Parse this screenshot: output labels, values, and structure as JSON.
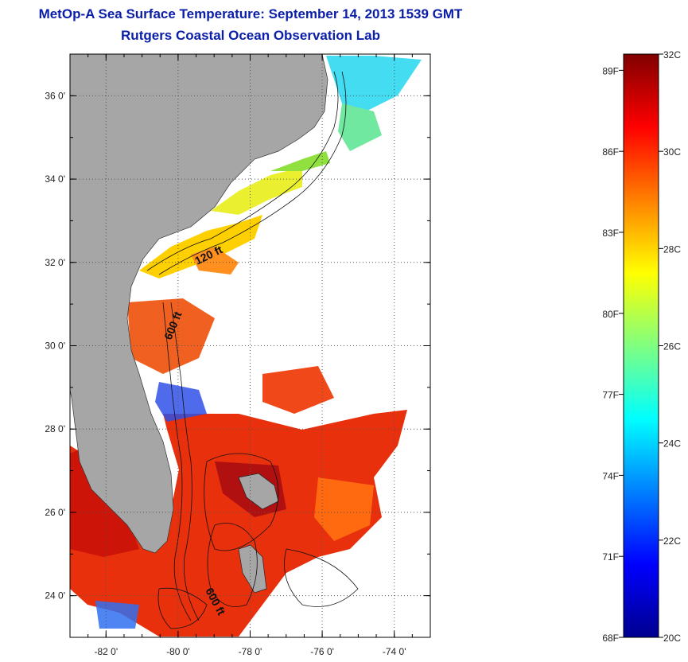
{
  "title": "MetOp-A Sea Surface Temperature:  September 14, 2013 1539 GMT",
  "subtitle": "Rutgers Coastal Ocean Observation Lab",
  "map": {
    "lon_range": [
      -83,
      -73
    ],
    "lat_range": [
      23,
      37
    ],
    "lat_labels": [
      "36 0'",
      "34 0'",
      "32 0'",
      "30 0'",
      "28 0'",
      "26 0'",
      "24 0'"
    ],
    "lon_labels": [
      "-82 0'",
      "-80 0'",
      "-78 0'",
      "-76 0'",
      "-74 0'"
    ],
    "contour_labels": [
      "120 ft",
      "600 ft",
      "600 ft"
    ],
    "land_color": "#a6a6a6"
  },
  "colorbar": {
    "range_c": [
      20,
      32
    ],
    "celsius_labels": [
      "32C",
      "30C",
      "28C",
      "26C",
      "24C",
      "22C",
      "20C"
    ],
    "fahrenheit_labels": [
      "89F",
      "86F",
      "83F",
      "80F",
      "77F",
      "74F",
      "71F",
      "68F"
    ],
    "colors": [
      "#00008f",
      "#0000ff",
      "#0080ff",
      "#00ffff",
      "#80ff80",
      "#ffff00",
      "#ff8000",
      "#ff0000",
      "#800000"
    ]
  }
}
